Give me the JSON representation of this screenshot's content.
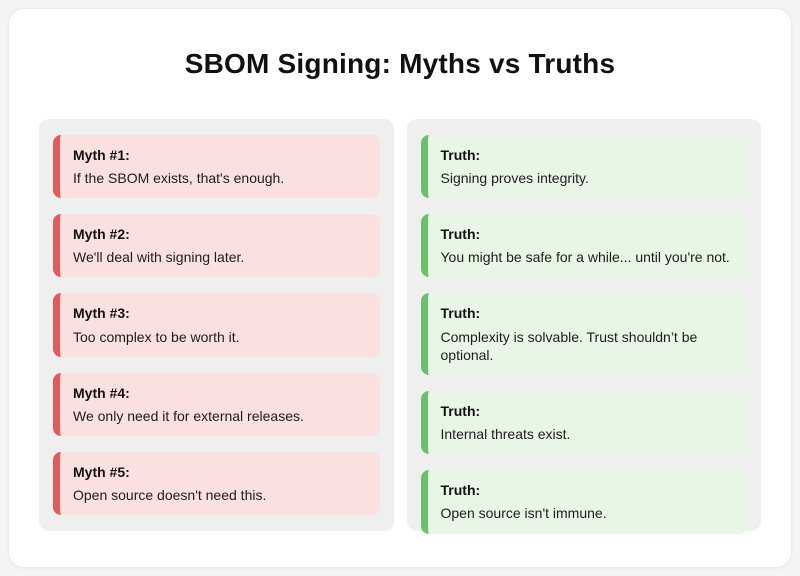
{
  "title": "SBOM Signing: Myths vs Truths",
  "colors": {
    "page_bg": "#f4f4f6",
    "panel_bg": "#ffffff",
    "column_bg": "#efefef",
    "myth_bg": "#fbe0e0",
    "myth_accent": "#e05c5c",
    "truth_bg": "#e8f6e6",
    "truth_accent": "#6cc06c",
    "text": "#111111"
  },
  "myths": {
    "items": [
      {
        "label": "Myth #1:",
        "text": "If the SBOM exists, that's enough."
      },
      {
        "label": "Myth #2:",
        "text": "We'll deal with signing later."
      },
      {
        "label": "Myth #3:",
        "text": "Too complex to be worth it."
      },
      {
        "label": "Myth #4:",
        "text": "We only need it for external releases."
      },
      {
        "label": "Myth #5:",
        "text": "Open source doesn't need this."
      }
    ]
  },
  "truths": {
    "items": [
      {
        "label": "Truth:",
        "text": "Signing proves integrity."
      },
      {
        "label": "Truth:",
        "text": "You might be safe for a while... until you're not."
      },
      {
        "label": "Truth:",
        "text": "Complexity is solvable. Trust shouldn’t be optional."
      },
      {
        "label": "Truth:",
        "text": "Internal threats exist."
      },
      {
        "label": "Truth:",
        "text": "Open source isn't immune."
      }
    ]
  }
}
